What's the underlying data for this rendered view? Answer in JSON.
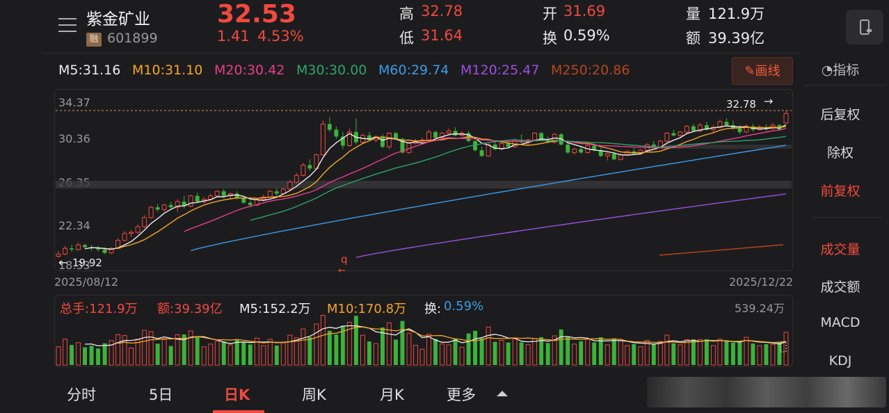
{
  "header": {
    "name": "紫金矿业",
    "rong": "融",
    "code": "601899",
    "price": "32.53",
    "change": "1.41",
    "change_pct": "4.53%",
    "quote": [
      {
        "label": "高",
        "value": "32.78"
      },
      {
        "label": "低",
        "value": "31.64"
      },
      {
        "label": "开",
        "value": "31.69"
      },
      {
        "label": "换",
        "value": "0.59%"
      },
      {
        "label": "量",
        "value": "121.9万"
      },
      {
        "label": "额",
        "value": "39.39亿"
      }
    ]
  },
  "ma_legend": [
    {
      "text": "M5:31.16",
      "color": "#ececec"
    },
    {
      "text": "M10:31.10",
      "color": "#f5a623"
    },
    {
      "text": "M20:30.42",
      "color": "#e83e8c"
    },
    {
      "text": "M30:30.00",
      "color": "#2ea36b"
    },
    {
      "text": "M60:29.74",
      "color": "#3b9be8"
    },
    {
      "text": "M120:25.47",
      "color": "#9b4fe0"
    },
    {
      "text": "M250:20.86",
      "color": "#b4471f"
    }
  ],
  "draw_button": "画线",
  "sidebar": {
    "indicator": "指标",
    "items": [
      "后复权",
      "除权",
      "前复权",
      "成交量",
      "成交额",
      "MACD",
      "KDJ"
    ]
  },
  "price_axis": [
    "34.37",
    "30.36",
    "26.35",
    "22.34",
    "18.33"
  ],
  "chart_labels": {
    "high_mark": "32.78",
    "low_mark": "19.92",
    "start_date": "2025/08/12",
    "end_date": "2025/12/22",
    "vol_max": "539.24万"
  },
  "volume_legend": {
    "total": "总手:121.9万",
    "amount": "额:39.39亿",
    "m5": "M5:152.2万",
    "m10": "M10:170.8万",
    "turnover_label": "换:",
    "turnover": "0.59%"
  },
  "tabs": [
    "分时",
    "5日",
    "日K",
    "周K",
    "月K",
    "更多"
  ],
  "colors": {
    "up": "#f1493f",
    "down": "#3bb33b",
    "bg": "#1c1c1e"
  },
  "chart_data": {
    "type": "candlestick",
    "period": "daily",
    "x_range": [
      "2025/08/12",
      "2025/12/22"
    ],
    "ylim": [
      18.33,
      34.37
    ],
    "y_ticks": [
      34.37,
      30.36,
      26.35,
      22.34,
      18.33
    ],
    "high": 32.78,
    "low": 19.92,
    "last_close": 32.53,
    "ohlc": [
      [
        20.0,
        20.5,
        19.9,
        20.2
      ],
      [
        20.2,
        20.9,
        20.1,
        20.7
      ],
      [
        20.7,
        21.0,
        20.4,
        20.6
      ],
      [
        20.6,
        21.2,
        20.5,
        21.0
      ],
      [
        21.0,
        21.1,
        20.7,
        20.8
      ],
      [
        20.8,
        21.0,
        20.5,
        20.7
      ],
      [
        20.7,
        20.9,
        20.4,
        20.6
      ],
      [
        20.6,
        20.8,
        20.2,
        20.3
      ],
      [
        20.3,
        20.8,
        20.2,
        20.7
      ],
      [
        20.7,
        21.6,
        20.6,
        21.4
      ],
      [
        21.4,
        22.2,
        21.3,
        22.0
      ],
      [
        22.0,
        22.3,
        21.7,
        22.1
      ],
      [
        22.1,
        22.8,
        22.0,
        22.6
      ],
      [
        22.6,
        23.6,
        22.5,
        23.4
      ],
      [
        23.4,
        24.4,
        23.3,
        24.3
      ],
      [
        24.3,
        24.6,
        23.9,
        24.1
      ],
      [
        24.1,
        24.6,
        23.9,
        24.5
      ],
      [
        24.5,
        24.8,
        24.2,
        24.3
      ],
      [
        24.3,
        25.0,
        23.9,
        24.8
      ],
      [
        24.8,
        25.3,
        24.2,
        24.4
      ],
      [
        24.4,
        25.4,
        24.3,
        25.3
      ],
      [
        25.3,
        25.6,
        24.7,
        24.8
      ],
      [
        24.8,
        25.2,
        24.6,
        25.0
      ],
      [
        25.0,
        25.5,
        24.9,
        25.3
      ],
      [
        25.3,
        25.8,
        25.2,
        25.7
      ],
      [
        25.7,
        25.9,
        25.1,
        25.3
      ],
      [
        25.3,
        25.6,
        25.0,
        25.5
      ],
      [
        25.5,
        25.7,
        25.0,
        25.1
      ],
      [
        25.1,
        25.3,
        24.6,
        24.7
      ],
      [
        24.7,
        24.9,
        24.3,
        24.5
      ],
      [
        24.5,
        25.1,
        24.4,
        25.0
      ],
      [
        25.0,
        25.4,
        24.8,
        25.2
      ],
      [
        25.2,
        25.8,
        25.1,
        25.7
      ],
      [
        25.7,
        26.0,
        25.3,
        25.5
      ],
      [
        25.5,
        26.0,
        25.4,
        25.9
      ],
      [
        25.9,
        26.7,
        25.8,
        26.5
      ],
      [
        26.5,
        27.3,
        26.4,
        27.1
      ],
      [
        27.1,
        28.2,
        27.0,
        28.0
      ],
      [
        28.0,
        28.5,
        27.5,
        27.7
      ],
      [
        27.7,
        29.0,
        27.6,
        28.9
      ],
      [
        28.9,
        31.9,
        28.8,
        31.6
      ],
      [
        31.6,
        32.2,
        30.9,
        31.1
      ],
      [
        31.1,
        31.4,
        30.3,
        30.5
      ],
      [
        30.5,
        30.9,
        29.4,
        29.7
      ],
      [
        29.7,
        31.2,
        29.6,
        30.9
      ],
      [
        30.9,
        32.1,
        29.8,
        30.0
      ],
      [
        30.0,
        30.8,
        29.9,
        30.6
      ],
      [
        30.6,
        30.9,
        30.1,
        30.2
      ],
      [
        30.2,
        30.6,
        30.0,
        30.5
      ],
      [
        30.5,
        30.7,
        29.5,
        29.6
      ],
      [
        29.6,
        30.9,
        29.4,
        30.8
      ],
      [
        30.8,
        30.9,
        30.2,
        30.3
      ],
      [
        30.3,
        30.4,
        29.0,
        29.1
      ],
      [
        29.1,
        30.0,
        29.0,
        29.9
      ],
      [
        29.9,
        30.3,
        29.8,
        30.1
      ],
      [
        30.1,
        30.4,
        29.9,
        30.2
      ],
      [
        30.2,
        31.1,
        30.1,
        30.9
      ],
      [
        30.9,
        31.0,
        30.3,
        30.4
      ],
      [
        30.4,
        30.9,
        30.3,
        30.8
      ],
      [
        30.8,
        31.2,
        30.6,
        31.0
      ],
      [
        31.0,
        31.3,
        30.5,
        30.6
      ],
      [
        30.6,
        31.0,
        30.5,
        30.8
      ],
      [
        30.8,
        31.0,
        30.0,
        30.1
      ],
      [
        30.1,
        30.2,
        29.2,
        29.3
      ],
      [
        29.3,
        29.6,
        28.7,
        28.8
      ],
      [
        28.8,
        29.9,
        28.7,
        29.8
      ],
      [
        29.8,
        30.1,
        29.3,
        29.4
      ],
      [
        29.4,
        30.0,
        29.3,
        29.9
      ],
      [
        29.9,
        30.1,
        29.5,
        29.6
      ],
      [
        29.6,
        30.3,
        29.5,
        30.2
      ],
      [
        30.2,
        30.7,
        29.9,
        30.0
      ],
      [
        30.0,
        30.3,
        29.8,
        30.2
      ],
      [
        30.2,
        30.9,
        30.1,
        30.8
      ],
      [
        30.8,
        30.9,
        30.1,
        30.2
      ],
      [
        30.2,
        30.5,
        29.9,
        30.0
      ],
      [
        30.0,
        30.8,
        29.9,
        30.7
      ],
      [
        30.7,
        30.8,
        29.7,
        29.8
      ],
      [
        29.8,
        29.9,
        29.0,
        29.1
      ],
      [
        29.1,
        29.5,
        28.9,
        29.4
      ],
      [
        29.4,
        29.7,
        29.0,
        29.1
      ],
      [
        29.1,
        29.8,
        29.0,
        29.7
      ],
      [
        29.7,
        29.8,
        29.2,
        29.3
      ],
      [
        29.3,
        29.5,
        28.7,
        28.8
      ],
      [
        28.8,
        29.1,
        28.4,
        29.0
      ],
      [
        29.0,
        29.2,
        28.4,
        28.5
      ],
      [
        28.5,
        29.0,
        28.4,
        28.9
      ],
      [
        28.9,
        29.3,
        28.8,
        29.2
      ],
      [
        29.2,
        29.5,
        28.9,
        29.0
      ],
      [
        29.0,
        29.4,
        28.9,
        29.3
      ],
      [
        29.3,
        29.9,
        29.2,
        29.8
      ],
      [
        29.8,
        30.1,
        29.5,
        29.6
      ],
      [
        29.6,
        30.2,
        29.5,
        30.1
      ],
      [
        30.1,
        30.9,
        30.0,
        30.8
      ],
      [
        30.8,
        31.1,
        30.5,
        30.6
      ],
      [
        30.6,
        31.0,
        30.4,
        30.9
      ],
      [
        30.9,
        31.5,
        30.8,
        31.4
      ],
      [
        31.4,
        31.6,
        30.9,
        31.0
      ],
      [
        31.0,
        31.7,
        30.9,
        31.5
      ],
      [
        31.5,
        31.8,
        31.0,
        31.1
      ],
      [
        31.1,
        31.5,
        30.8,
        31.3
      ],
      [
        31.3,
        32.0,
        31.2,
        31.8
      ],
      [
        31.8,
        32.1,
        31.4,
        31.5
      ],
      [
        31.5,
        31.9,
        31.1,
        31.2
      ],
      [
        31.2,
        31.5,
        30.7,
        30.9
      ],
      [
        30.9,
        31.6,
        30.8,
        31.4
      ],
      [
        31.4,
        31.6,
        30.9,
        31.1
      ],
      [
        31.1,
        31.5,
        31.0,
        31.3
      ],
      [
        31.3,
        31.6,
        31.0,
        31.2
      ],
      [
        31.2,
        31.7,
        31.1,
        31.5
      ],
      [
        31.5,
        31.6,
        31.0,
        31.12
      ],
      [
        31.69,
        32.78,
        31.64,
        32.53
      ]
    ],
    "volume_ylim": [
      0,
      539.24
    ],
    "volume_unit": "万"
  }
}
